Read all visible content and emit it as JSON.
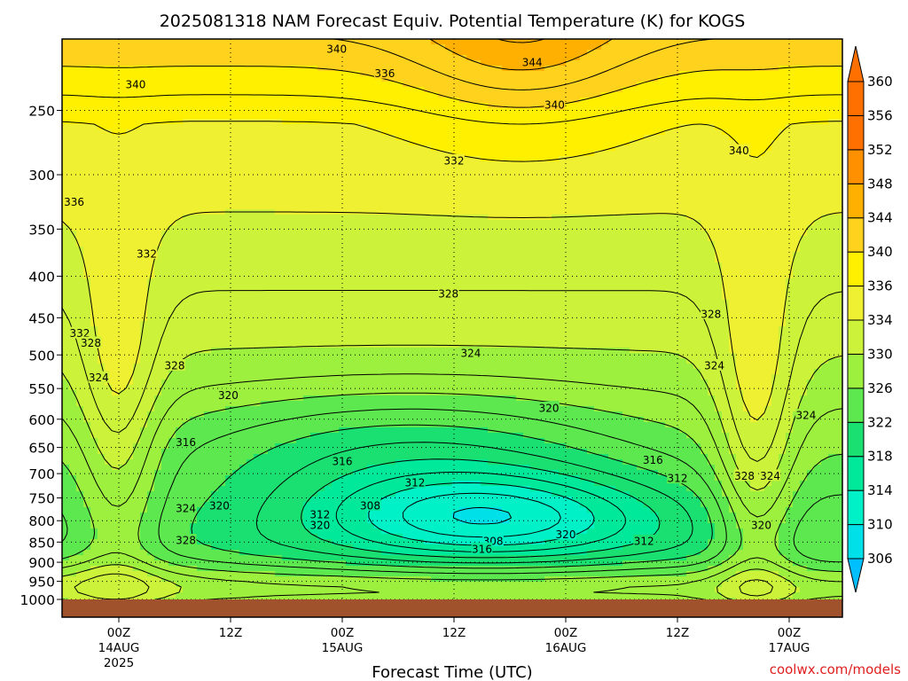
{
  "colors": {
    "ground": "#a0522d",
    "credit": "#e02020",
    "bands": [
      "#00bfff",
      "#00e0e8",
      "#00f0c8",
      "#00e89a",
      "#19e070",
      "#5ce84e",
      "#9ef03e",
      "#ccf23a",
      "#f0f032",
      "#fff000",
      "#ffd21e",
      "#ffb000",
      "#ff9000",
      "#ff7000"
    ]
  },
  "chart_data": {
    "type": "contour",
    "title": "2025081318 NAM Forecast Equiv. Potential Temperature (K) for KOGS",
    "xlabel": "Forecast Time (UTC)",
    "ylabel": "",
    "variable": "Equivalent Potential Temperature",
    "unit": "K",
    "station": "KOGS",
    "model": "NAM",
    "init": "2025081318",
    "x_range_hours": [
      -6.5,
      63.5
    ],
    "y_range_hPa": [
      1020,
      200
    ],
    "y_scale": "log-pressure",
    "grid": true,
    "pressure_ticks": [
      250,
      300,
      350,
      400,
      450,
      500,
      550,
      600,
      650,
      700,
      750,
      800,
      850,
      900,
      950,
      1000
    ],
    "time_ticks": [
      {
        "hour": 0,
        "line1": "00Z",
        "line2": "14AUG",
        "line3": "2025"
      },
      {
        "hour": 10,
        "line1": "12Z",
        "line2": "",
        "line3": ""
      },
      {
        "hour": 20,
        "line1": "00Z",
        "line2": "15AUG",
        "line3": ""
      },
      {
        "hour": 30,
        "line1": "12Z",
        "line2": "",
        "line3": ""
      },
      {
        "hour": 40,
        "line1": "00Z",
        "line2": "16AUG",
        "line3": ""
      },
      {
        "hour": 50,
        "line1": "12Z",
        "line2": "",
        "line3": ""
      },
      {
        "hour": 60,
        "line1": "00Z",
        "line2": "17AUG",
        "line3": ""
      }
    ],
    "colorbar": {
      "levels": [
        306,
        310,
        314,
        318,
        322,
        326,
        330,
        334,
        336,
        340,
        344,
        348,
        352,
        356,
        360
      ],
      "extend": "both"
    },
    "contour_labels": [
      {
        "text": "340",
        "x": 19.5,
        "p": 210
      },
      {
        "text": "344",
        "x": 37,
        "p": 218
      },
      {
        "text": "340",
        "x": 1.5,
        "p": 232
      },
      {
        "text": "336",
        "x": 23.8,
        "p": 225
      },
      {
        "text": "340",
        "x": 39,
        "p": 246
      },
      {
        "text": "340",
        "x": 55.5,
        "p": 280
      },
      {
        "text": "336",
        "x": -4,
        "p": 324
      },
      {
        "text": "332",
        "x": 30,
        "p": 288
      },
      {
        "text": "332",
        "x": 2.5,
        "p": 375
      },
      {
        "text": "328",
        "x": 29.5,
        "p": 420
      },
      {
        "text": "328",
        "x": 53,
        "p": 445
      },
      {
        "text": "332",
        "x": -3.5,
        "p": 470
      },
      {
        "text": "328",
        "x": -2.5,
        "p": 483
      },
      {
        "text": "328",
        "x": 5,
        "p": 515
      },
      {
        "text": "324",
        "x": 31.5,
        "p": 497
      },
      {
        "text": "324",
        "x": 53.3,
        "p": 515
      },
      {
        "text": "324",
        "x": -1.8,
        "p": 533
      },
      {
        "text": "320",
        "x": 9.8,
        "p": 560
      },
      {
        "text": "320",
        "x": 38.5,
        "p": 581
      },
      {
        "text": "324",
        "x": 61.5,
        "p": 593
      },
      {
        "text": "316",
        "x": 6,
        "p": 640
      },
      {
        "text": "316",
        "x": 20,
        "p": 676
      },
      {
        "text": "316",
        "x": 47.8,
        "p": 673
      },
      {
        "text": "312",
        "x": 26.5,
        "p": 718
      },
      {
        "text": "312",
        "x": 50,
        "p": 709
      },
      {
        "text": "328",
        "x": 56,
        "p": 704
      },
      {
        "text": "324",
        "x": 58.3,
        "p": 704
      },
      {
        "text": "308",
        "x": 22.5,
        "p": 766
      },
      {
        "text": "324",
        "x": 6,
        "p": 772
      },
      {
        "text": "320",
        "x": 9,
        "p": 766
      },
      {
        "text": "312",
        "x": 18,
        "p": 786
      },
      {
        "text": "320",
        "x": 18,
        "p": 810
      },
      {
        "text": "308",
        "x": 33.5,
        "p": 847
      },
      {
        "text": "316",
        "x": 32.5,
        "p": 866
      },
      {
        "text": "320",
        "x": 40,
        "p": 831
      },
      {
        "text": "312",
        "x": 47,
        "p": 847
      },
      {
        "text": "320",
        "x": 57.5,
        "p": 810
      },
      {
        "text": "328",
        "x": 6,
        "p": 845
      }
    ]
  },
  "credit": "coolwx.com/models"
}
